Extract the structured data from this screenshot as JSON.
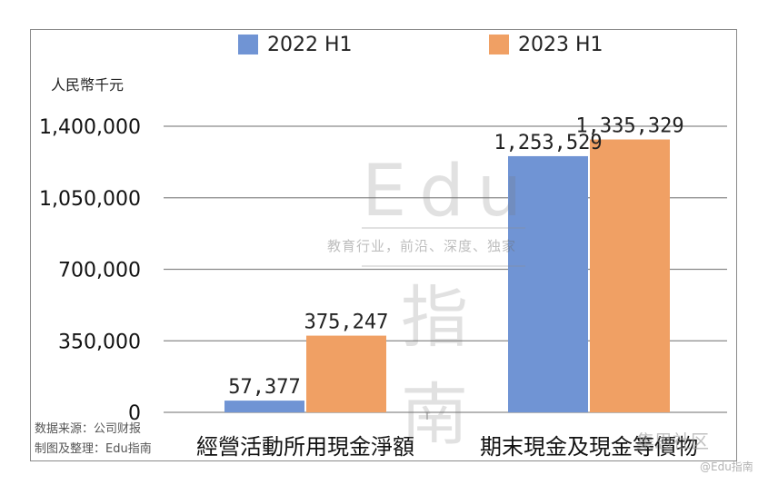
{
  "chart_data": {
    "type": "bar",
    "categories": [
      "經營活動所用現金淨額",
      "期末現金及現金等價物"
    ],
    "series": [
      {
        "name": "2022 H1",
        "values": [
          57377,
          1253529
        ]
      },
      {
        "name": "2023 H1",
        "values": [
          375247,
          1335329
        ]
      }
    ],
    "data_labels": [
      [
        "57,377",
        "1,253,529"
      ],
      [
        "375,247",
        "1,335,329"
      ]
    ],
    "title": "",
    "xlabel": "",
    "ylabel": "人民幣千元",
    "ylim": [
      0,
      1400000
    ],
    "yticks": [
      0,
      350000,
      700000,
      1050000,
      1400000
    ],
    "ytick_labels": [
      "0",
      "350,000",
      "700,000",
      "1,050,000",
      "1,400,000"
    ],
    "grid": true,
    "legend_position": "top"
  },
  "colors": {
    "series1": "#7094d4",
    "series2": "#f0a064",
    "grid": "#8a8a8a"
  },
  "source_note": [
    "数据来源：公司财报",
    "制图及整理：Edu指南"
  ],
  "watermark": {
    "main": "Edu",
    "tagline": "教育行业，前沿、深度、独家",
    "cn": "指南",
    "corner": "集思社区",
    "corner_sub": "@Edu指南"
  }
}
